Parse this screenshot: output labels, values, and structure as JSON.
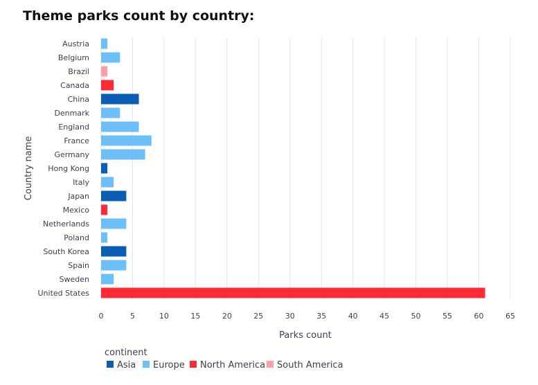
{
  "chart_data": {
    "type": "bar",
    "orientation": "horizontal",
    "title": "Theme parks count by country:",
    "xlabel": "Parks count",
    "ylabel": "Country name",
    "xlim": [
      0,
      65
    ],
    "xticks": [
      0,
      5,
      10,
      15,
      20,
      25,
      30,
      35,
      40,
      45,
      50,
      55,
      60,
      65
    ],
    "grid": true,
    "legend": {
      "title": "continent",
      "position": "bottom-left",
      "items": [
        {
          "name": "Asia",
          "color": "#0b5cb5"
        },
        {
          "name": "Europe",
          "color": "#6cc0f7"
        },
        {
          "name": "North America",
          "color": "#ff2b35"
        },
        {
          "name": "South America",
          "color": "#ff9fa3"
        }
      ]
    },
    "categories": [
      "Austria",
      "Belgium",
      "Brazil",
      "Canada",
      "China",
      "Denmark",
      "England",
      "France",
      "Germany",
      "Hong Kong",
      "Italy",
      "Japan",
      "Mexico",
      "Netherlands",
      "Poland",
      "South Korea",
      "Spain",
      "Sweden",
      "United States"
    ],
    "values": [
      1,
      3,
      1,
      2,
      6,
      3,
      6,
      8,
      7,
      1,
      2,
      4,
      1,
      4,
      1,
      4,
      4,
      2,
      61
    ],
    "continent": [
      "Europe",
      "Europe",
      "South America",
      "North America",
      "Asia",
      "Europe",
      "Europe",
      "Europe",
      "Europe",
      "Asia",
      "Europe",
      "Asia",
      "North America",
      "Europe",
      "Europe",
      "Asia",
      "Europe",
      "Europe",
      "North America"
    ]
  }
}
